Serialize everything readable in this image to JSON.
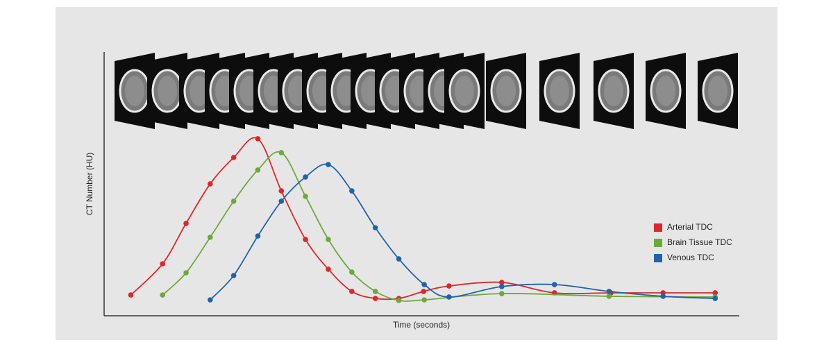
{
  "chart_data": {
    "type": "line",
    "x_label": "Time (seconds)",
    "y_label": "CT Number (HU)",
    "xlim": [
      0,
      100
    ],
    "ylim": [
      0,
      100
    ],
    "legend": "right",
    "series": [
      {
        "name": "Arterial TDC",
        "color": "#e0262a",
        "x": [
          4.2,
          9.2,
          12.9,
          16.7,
          20.4,
          24.2,
          27.9,
          31.7,
          35.3,
          39.0,
          42.7,
          46.4,
          50.3,
          54.3,
          62.6,
          70.9,
          79.8,
          88.0,
          96.2
        ],
        "values": [
          11.5,
          28.8,
          51.2,
          73.1,
          87.7,
          98.1,
          69.2,
          42.3,
          25.8,
          13.5,
          9.6,
          9.6,
          13.5,
          16.5,
          18.5,
          12.7,
          12.7,
          12.7,
          12.7
        ]
      },
      {
        "name": "Brain Tissue TDC",
        "color": "#6fa83a",
        "x": [
          9.2,
          12.9,
          16.7,
          20.4,
          24.2,
          27.9,
          31.7,
          35.3,
          39.0,
          42.7,
          46.4,
          50.4,
          62.6,
          79.5,
          96.2
        ],
        "values": [
          11.5,
          23.8,
          43.5,
          63.5,
          80.8,
          90.4,
          66.2,
          42.3,
          24.2,
          13.5,
          8.5,
          8.8,
          12.3,
          10.8,
          10.4
        ]
      },
      {
        "name": "Venous TDC",
        "color": "#1f63aa",
        "x": [
          16.7,
          20.4,
          24.2,
          27.9,
          31.7,
          35.3,
          39.0,
          42.7,
          46.4,
          50.4,
          54.3,
          62.6,
          70.9,
          79.5,
          88.0,
          96.2
        ],
        "values": [
          8.8,
          22.3,
          44.2,
          63.5,
          76.9,
          83.8,
          69.2,
          48.8,
          31.5,
          17.3,
          10.4,
          16.2,
          17.3,
          13.5,
          10.8,
          9.6
        ]
      }
    ]
  }
}
